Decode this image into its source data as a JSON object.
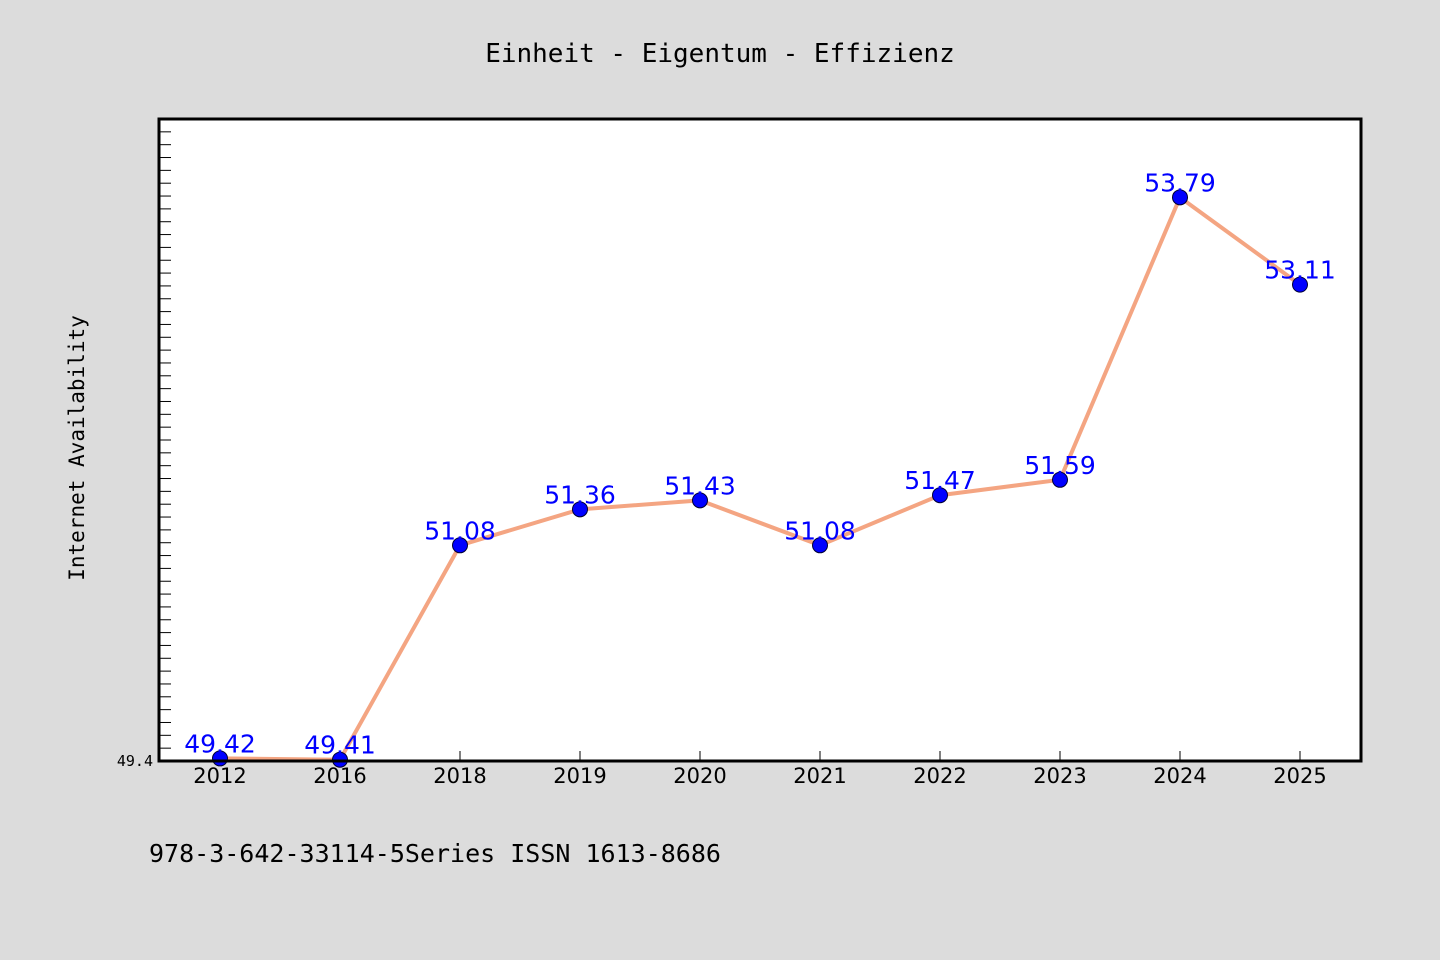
{
  "chart_data": {
    "type": "line",
    "title": "Einheit - Eigentum - Effizienz",
    "xlabel": "",
    "ylabel": "Internet Availability",
    "categories": [
      "2012",
      "2016",
      "2018",
      "2019",
      "2020",
      "2021",
      "2022",
      "2023",
      "2024",
      "2025"
    ],
    "series": [
      {
        "values": [
          49.42,
          49.41,
          51.08,
          51.36,
          51.43,
          51.08,
          51.47,
          51.59,
          53.79,
          53.11
        ],
        "labels": [
          "49.42",
          "49.41",
          "51.08",
          "51.36",
          "51.43",
          "51.08",
          "51.47",
          "51.59",
          "53.79",
          "53.11"
        ],
        "line_color": "#f4a582",
        "marker_color": "#0000ff"
      }
    ],
    "ylim": [
      49.4,
      54.4
    ],
    "yticks": [
      "49.4"
    ],
    "grid": false,
    "legend": "none"
  },
  "footer": {
    "text": "978-3-642-33114-5Series ISSN 1613-8686"
  },
  "colors": {
    "background": "#dcdcdc",
    "plot_background": "#ffffff",
    "line": "#f4a582",
    "marker": "#0000ff",
    "data_label": "#0000ff"
  }
}
